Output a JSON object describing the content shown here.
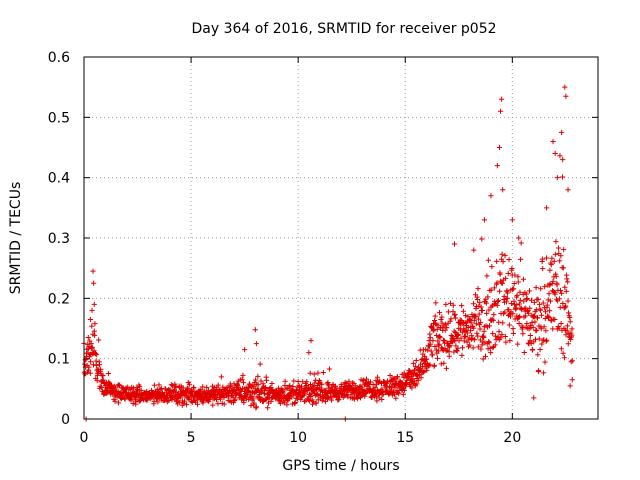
{
  "chart_data": {
    "type": "scatter",
    "title": "Day 364 of 2016, SRMTID for receiver p052",
    "xlabel": "GPS time / hours",
    "ylabel": "SRMTID / TECUs",
    "xlim": [
      0,
      24
    ],
    "ylim": [
      0,
      0.6
    ],
    "xticks": [
      0,
      5,
      10,
      15,
      20
    ],
    "xtick_labels": [
      "0",
      "5",
      "10",
      "15",
      "20"
    ],
    "yticks": [
      0,
      0.1,
      0.2,
      0.3,
      0.4,
      0.5,
      0.6
    ],
    "ytick_labels": [
      "0",
      "0.1",
      "0.2",
      "0.3",
      "0.4",
      "0.5",
      "0.6"
    ],
    "grid": true,
    "marker": "+",
    "marker_color": "#e00000",
    "series": [
      {
        "name": "SRMTID",
        "envelope": [
          {
            "x": 0.0,
            "base": 0.09,
            "spread": 0.03
          },
          {
            "x": 0.2,
            "base": 0.11,
            "spread": 0.05
          },
          {
            "x": 0.4,
            "base": 0.12,
            "spread": 0.1
          },
          {
            "x": 0.6,
            "base": 0.09,
            "spread": 0.05
          },
          {
            "x": 1.0,
            "base": 0.05,
            "spread": 0.025
          },
          {
            "x": 2.0,
            "base": 0.04,
            "spread": 0.02
          },
          {
            "x": 3.0,
            "base": 0.038,
            "spread": 0.02
          },
          {
            "x": 4.0,
            "base": 0.042,
            "spread": 0.02
          },
          {
            "x": 5.0,
            "base": 0.04,
            "spread": 0.025
          },
          {
            "x": 6.0,
            "base": 0.04,
            "spread": 0.02
          },
          {
            "x": 7.0,
            "base": 0.045,
            "spread": 0.03
          },
          {
            "x": 8.0,
            "base": 0.045,
            "spread": 0.035
          },
          {
            "x": 9.0,
            "base": 0.04,
            "spread": 0.02
          },
          {
            "x": 10.0,
            "base": 0.042,
            "spread": 0.025
          },
          {
            "x": 11.0,
            "base": 0.045,
            "spread": 0.025
          },
          {
            "x": 12.0,
            "base": 0.045,
            "spread": 0.02
          },
          {
            "x": 13.0,
            "base": 0.05,
            "spread": 0.025
          },
          {
            "x": 14.0,
            "base": 0.05,
            "spread": 0.025
          },
          {
            "x": 15.0,
            "base": 0.06,
            "spread": 0.03
          },
          {
            "x": 15.8,
            "base": 0.08,
            "spread": 0.04
          },
          {
            "x": 16.3,
            "base": 0.13,
            "spread": 0.07
          },
          {
            "x": 17.0,
            "base": 0.14,
            "spread": 0.07
          },
          {
            "x": 18.0,
            "base": 0.15,
            "spread": 0.07
          },
          {
            "x": 19.0,
            "base": 0.17,
            "spread": 0.09
          },
          {
            "x": 19.6,
            "base": 0.2,
            "spread": 0.11
          },
          {
            "x": 20.2,
            "base": 0.2,
            "spread": 0.1
          },
          {
            "x": 21.0,
            "base": 0.15,
            "spread": 0.09
          },
          {
            "x": 21.8,
            "base": 0.2,
            "spread": 0.14
          },
          {
            "x": 22.3,
            "base": 0.22,
            "spread": 0.16
          },
          {
            "x": 22.8,
            "base": 0.13,
            "spread": 0.06
          }
        ],
        "notable_points": [
          {
            "x": 0.1,
            "y": 0.0
          },
          {
            "x": 0.2,
            "y": 0.135
          },
          {
            "x": 0.3,
            "y": 0.165
          },
          {
            "x": 0.42,
            "y": 0.245
          },
          {
            "x": 0.45,
            "y": 0.225
          },
          {
            "x": 0.48,
            "y": 0.19
          },
          {
            "x": 8.0,
            "y": 0.148
          },
          {
            "x": 8.05,
            "y": 0.125
          },
          {
            "x": 7.5,
            "y": 0.115
          },
          {
            "x": 10.6,
            "y": 0.13
          },
          {
            "x": 10.5,
            "y": 0.11
          },
          {
            "x": 12.2,
            "y": 0.0
          },
          {
            "x": 17.3,
            "y": 0.29
          },
          {
            "x": 18.2,
            "y": 0.28
          },
          {
            "x": 18.7,
            "y": 0.33
          },
          {
            "x": 19.0,
            "y": 0.37
          },
          {
            "x": 19.3,
            "y": 0.42
          },
          {
            "x": 19.4,
            "y": 0.45
          },
          {
            "x": 19.45,
            "y": 0.51
          },
          {
            "x": 19.5,
            "y": 0.53
          },
          {
            "x": 19.55,
            "y": 0.38
          },
          {
            "x": 20.0,
            "y": 0.33
          },
          {
            "x": 20.3,
            "y": 0.3
          },
          {
            "x": 21.0,
            "y": 0.035
          },
          {
            "x": 21.6,
            "y": 0.35
          },
          {
            "x": 21.9,
            "y": 0.46
          },
          {
            "x": 22.0,
            "y": 0.44
          },
          {
            "x": 22.1,
            "y": 0.4
          },
          {
            "x": 22.3,
            "y": 0.475
          },
          {
            "x": 22.35,
            "y": 0.43
          },
          {
            "x": 22.45,
            "y": 0.55
          },
          {
            "x": 22.5,
            "y": 0.535
          },
          {
            "x": 22.6,
            "y": 0.38
          },
          {
            "x": 22.7,
            "y": 0.055
          },
          {
            "x": 22.8,
            "y": 0.065
          }
        ]
      }
    ]
  }
}
